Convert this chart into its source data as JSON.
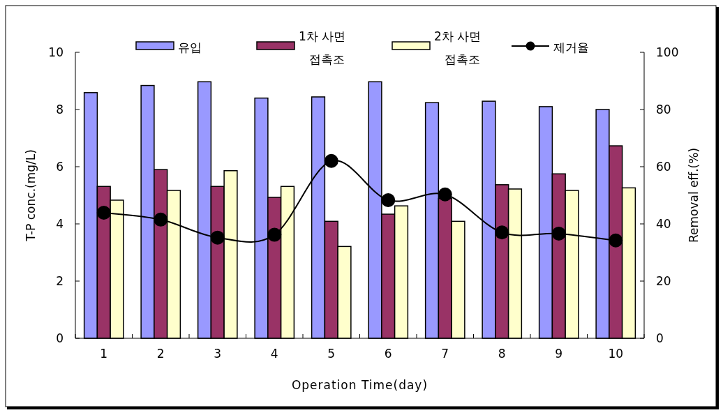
{
  "chart_data": {
    "type": "bar",
    "xlabel": "Operation Time(day)",
    "ylabel": "T-P conc.(mg/L)",
    "y2label": "Removal eff.(%)",
    "categories": [
      "1",
      "2",
      "3",
      "4",
      "5",
      "6",
      "7",
      "8",
      "9",
      "10"
    ],
    "series": [
      {
        "name": "유입",
        "color": "#9999ff",
        "values": [
          8.59,
          8.84,
          8.97,
          8.4,
          8.44,
          8.97,
          8.24,
          8.29,
          8.1,
          8.0
        ]
      },
      {
        "name": "1차 사면 접촉조",
        "color": "#993366",
        "values": [
          5.31,
          5.9,
          5.31,
          4.93,
          4.09,
          4.34,
          4.89,
          5.37,
          5.75,
          6.73
        ]
      },
      {
        "name": "2차 사면 접촉조",
        "color": "#ffffcc",
        "values": [
          4.83,
          5.17,
          5.86,
          5.31,
          3.21,
          4.63,
          4.09,
          5.22,
          5.17,
          5.26
        ]
      },
      {
        "name": "제거율",
        "type": "line",
        "axis": "y2",
        "color": "#000000",
        "marker": "circle",
        "values": [
          43.9,
          41.5,
          35.2,
          36.2,
          62.0,
          48.3,
          50.3,
          37.0,
          36.6,
          34.2
        ]
      }
    ],
    "ylim": [
      0,
      10
    ],
    "yticks": [
      0,
      2,
      4,
      6,
      8,
      10
    ],
    "y2lim": [
      0,
      100
    ],
    "y2ticks": [
      0,
      20,
      40,
      60,
      80,
      100
    ],
    "grid": false,
    "legend": "top"
  }
}
